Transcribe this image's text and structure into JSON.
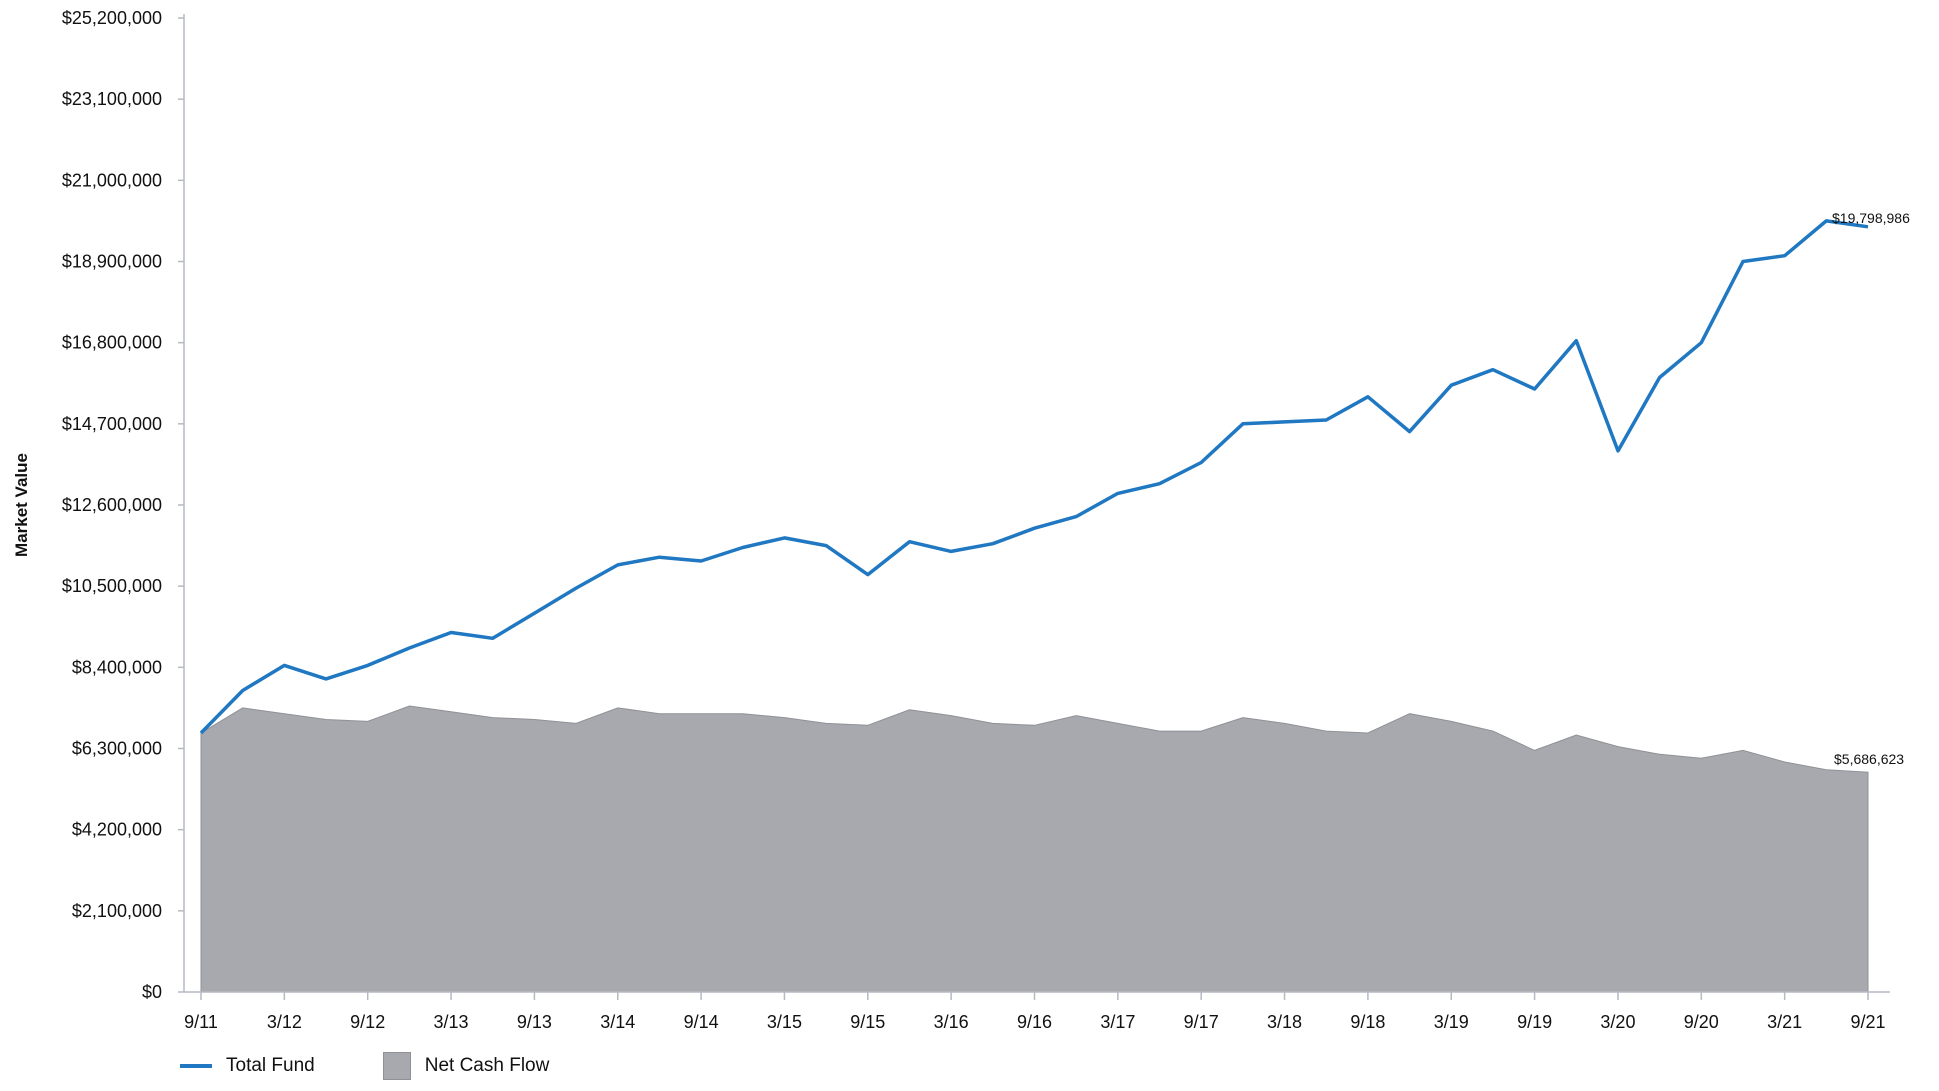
{
  "chart_data": {
    "type": "area",
    "ylabel": "Market Value",
    "xlabel": "",
    "ylim": [
      0,
      25200000
    ],
    "yticks": [
      0,
      2100000,
      4200000,
      6300000,
      8400000,
      10500000,
      12600000,
      14700000,
      16800000,
      18900000,
      21000000,
      23100000,
      25200000
    ],
    "ytick_labels": [
      "$0",
      "$2,100,000",
      "$4,200,000",
      "$6,300,000",
      "$8,400,000",
      "$10,500,000",
      "$12,600,000",
      "$14,700,000",
      "$16,800,000",
      "$18,900,000",
      "$21,000,000",
      "$23,100,000",
      "$25,200,000"
    ],
    "x": [
      "9/11",
      "12/11",
      "3/12",
      "6/12",
      "9/12",
      "12/12",
      "3/13",
      "6/13",
      "9/13",
      "12/13",
      "3/14",
      "6/14",
      "9/14",
      "12/14",
      "3/15",
      "6/15",
      "9/15",
      "12/15",
      "3/16",
      "6/16",
      "9/16",
      "12/16",
      "3/17",
      "6/17",
      "9/17",
      "12/17",
      "3/18",
      "6/18",
      "9/18",
      "12/18",
      "3/19",
      "6/19",
      "9/19",
      "12/19",
      "3/20",
      "6/20",
      "9/20",
      "12/20",
      "3/21",
      "6/21",
      "9/21"
    ],
    "xtick_labels": [
      "9/11",
      "3/12",
      "9/12",
      "3/13",
      "9/13",
      "3/14",
      "9/14",
      "3/15",
      "9/15",
      "3/16",
      "9/16",
      "3/17",
      "9/17",
      "3/18",
      "9/18",
      "3/19",
      "9/19",
      "3/20",
      "9/20",
      "3/21",
      "9/21"
    ],
    "series": [
      {
        "name": "Total Fund",
        "kind": "line",
        "color": "#1f78c1",
        "values": [
          6700000,
          7800000,
          8450000,
          8100000,
          8450000,
          8900000,
          9300000,
          9150000,
          9800000,
          10450000,
          11050000,
          11250000,
          11150000,
          11500000,
          11750000,
          11550000,
          10800000,
          11650000,
          11400000,
          11600000,
          12000000,
          12300000,
          12900000,
          13150000,
          13700000,
          14700000,
          14750000,
          14800000,
          15400000,
          14500000,
          15700000,
          16100000,
          15600000,
          16850000,
          14000000,
          15900000,
          16800000,
          18900000,
          19050000,
          19950000,
          19798986
        ],
        "end_label": "$19,798,986"
      },
      {
        "name": "Net Cash Flow",
        "kind": "area",
        "color": "#a7a9ae",
        "values": [
          6700000,
          7350000,
          7200000,
          7050000,
          7000000,
          7400000,
          7250000,
          7100000,
          7050000,
          6950000,
          7350000,
          7200000,
          7200000,
          7200000,
          7100000,
          6950000,
          6900000,
          7300000,
          7150000,
          6950000,
          6900000,
          7150000,
          6950000,
          6750000,
          6750000,
          7100000,
          6950000,
          6750000,
          6700000,
          7200000,
          7000000,
          6750000,
          6250000,
          6650000,
          6350000,
          6150000,
          6050000,
          6250000,
          5950000,
          5750000,
          5686623
        ],
        "end_label": "$5,686,623"
      }
    ],
    "legend": {
      "position": "bottom-left",
      "entries": [
        "Total Fund",
        "Net Cash Flow"
      ]
    },
    "grid": false
  }
}
